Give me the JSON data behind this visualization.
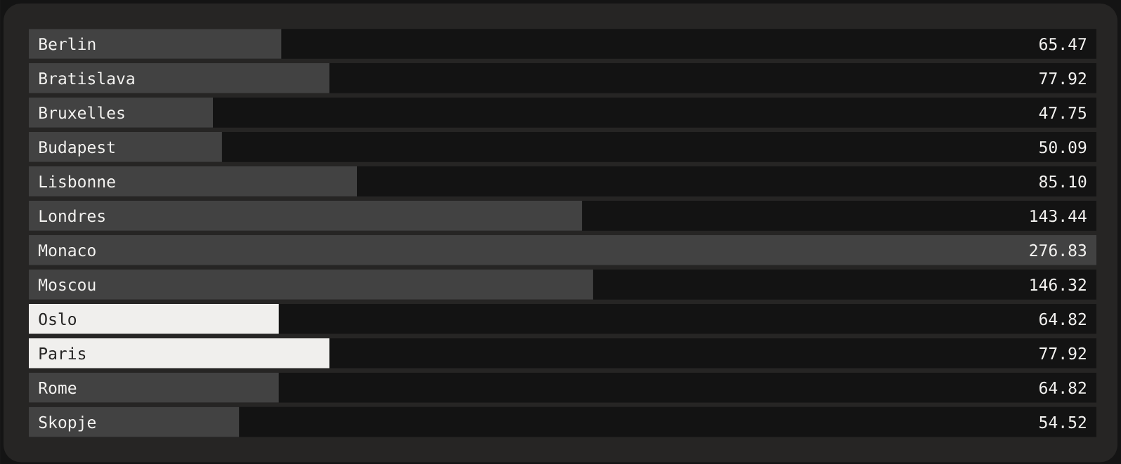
{
  "chart_data": {
    "type": "bar",
    "orientation": "horizontal",
    "categories": [
      "Berlin",
      "Bratislava",
      "Bruxelles",
      "Budapest",
      "Lisbonne",
      "Londres",
      "Monaco",
      "Moscou",
      "Oslo",
      "Paris",
      "Rome",
      "Skopje"
    ],
    "values": [
      65.47,
      77.92,
      47.75,
      50.09,
      85.1,
      143.44,
      276.83,
      146.32,
      64.82,
      77.92,
      64.82,
      54.52
    ],
    "value_labels": [
      "65.47",
      "77.92",
      "47.75",
      "50.09",
      "85.10",
      "143.44",
      "276.83",
      "146.32",
      "64.82",
      "77.92",
      "64.82",
      "54.52"
    ],
    "colors": [
      "#424242",
      "#424242",
      "#424242",
      "#424242",
      "#424242",
      "#424242",
      "#424242",
      "#424242",
      "#f0efed",
      "#f0efed",
      "#424242",
      "#424242"
    ]
  }
}
